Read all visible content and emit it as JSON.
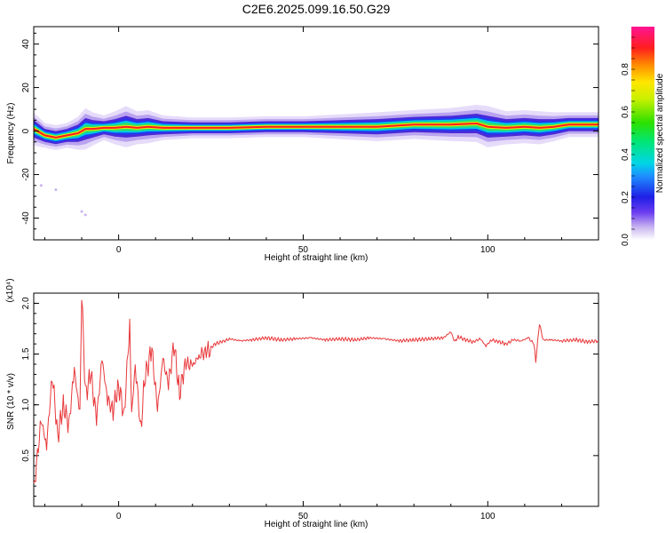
{
  "title": "C2E6.2025.099.16.50.G29",
  "chart_data": [
    {
      "type": "heatmap",
      "xlabel": "Height of straight line (km)",
      "ylabel": "Frequency (Hz)",
      "xlim": [
        -23,
        130
      ],
      "ylim": [
        -50,
        48
      ],
      "xticks": [
        0,
        50,
        100
      ],
      "yticks": [
        -40,
        -20,
        0,
        20,
        40
      ],
      "ridge": {
        "x": [
          -23,
          -20,
          -17,
          -14,
          -11,
          -9,
          -7,
          -4,
          -1,
          2,
          5,
          8,
          12,
          20,
          30,
          40,
          50,
          60,
          70,
          80,
          90,
          97,
          100,
          105,
          110,
          114,
          118,
          122,
          126,
          130
        ],
        "freq": [
          1,
          -2,
          -3,
          -2,
          -1,
          1,
          1,
          1.5,
          1.5,
          2,
          1.5,
          2,
          1.5,
          1.5,
          1.5,
          2,
          2,
          2,
          2,
          3,
          3,
          3.5,
          2,
          1.5,
          2,
          1.5,
          2,
          3,
          3,
          3
        ],
        "halfwidth": [
          4,
          3,
          3,
          3,
          4,
          5,
          4,
          3,
          4,
          5,
          4,
          4,
          3,
          2.5,
          2.5,
          2.5,
          2.5,
          3,
          3.5,
          3.5,
          4,
          4.5,
          5,
          4,
          4,
          4,
          3.5,
          3,
          3,
          3
        ]
      },
      "colorbar": {
        "label": "Normalized spectral amplitude",
        "range": [
          0,
          1
        ],
        "ticks": [
          "0.0",
          "0.2",
          "0.4",
          "0.6",
          "0.8"
        ]
      }
    },
    {
      "type": "line",
      "xlabel": "Height of straight line (km)",
      "ylabel": "SNR (10 * v/v)",
      "multiplier": "(x10⁴)",
      "xlim": [
        -23,
        130
      ],
      "ylim": [
        0,
        2.1
      ],
      "xticks": [
        0,
        50,
        100
      ],
      "yticks": [
        0.5,
        1.0,
        1.5,
        2.0
      ],
      "series": [
        {
          "color": "#e8383b",
          "x": [
            -23,
            -21,
            -19.5,
            -18,
            -16.5,
            -15,
            -13.5,
            -12,
            -10.5,
            -10,
            -9,
            -7.5,
            -6,
            -4.5,
            -3,
            -1.5,
            0,
            1.5,
            3,
            3.5,
            4.5,
            6,
            7,
            9,
            10.5,
            12,
            13.5,
            15,
            16.5,
            18,
            20,
            22,
            24,
            26,
            28,
            30,
            33,
            36,
            40,
            44,
            48,
            52,
            56,
            60,
            64,
            68,
            72,
            76,
            80,
            84,
            88,
            90,
            91,
            92,
            94,
            96,
            98,
            99.5,
            101,
            103,
            105,
            107,
            109,
            111,
            112.5,
            113,
            114,
            115,
            117,
            120,
            124,
            127,
            130
          ],
          "y": [
            0.15,
            0.85,
            0.6,
            1.3,
            0.7,
            1.0,
            0.8,
            1.35,
            0.9,
            2.1,
            1.1,
            1.3,
            0.85,
            1.45,
            1.05,
            0.95,
            1.2,
            0.9,
            1.8,
            0.9,
            1.4,
            0.75,
            1.25,
            1.55,
            0.95,
            1.45,
            1.2,
            1.6,
            1.1,
            1.42,
            1.38,
            1.5,
            1.52,
            1.6,
            1.62,
            1.65,
            1.63,
            1.64,
            1.66,
            1.64,
            1.65,
            1.66,
            1.64,
            1.65,
            1.64,
            1.66,
            1.65,
            1.63,
            1.64,
            1.65,
            1.66,
            1.72,
            1.62,
            1.67,
            1.64,
            1.62,
            1.65,
            1.58,
            1.64,
            1.62,
            1.6,
            1.64,
            1.63,
            1.66,
            1.6,
            1.43,
            1.8,
            1.64,
            1.64,
            1.63,
            1.64,
            1.62,
            1.63
          ]
        }
      ]
    }
  ]
}
